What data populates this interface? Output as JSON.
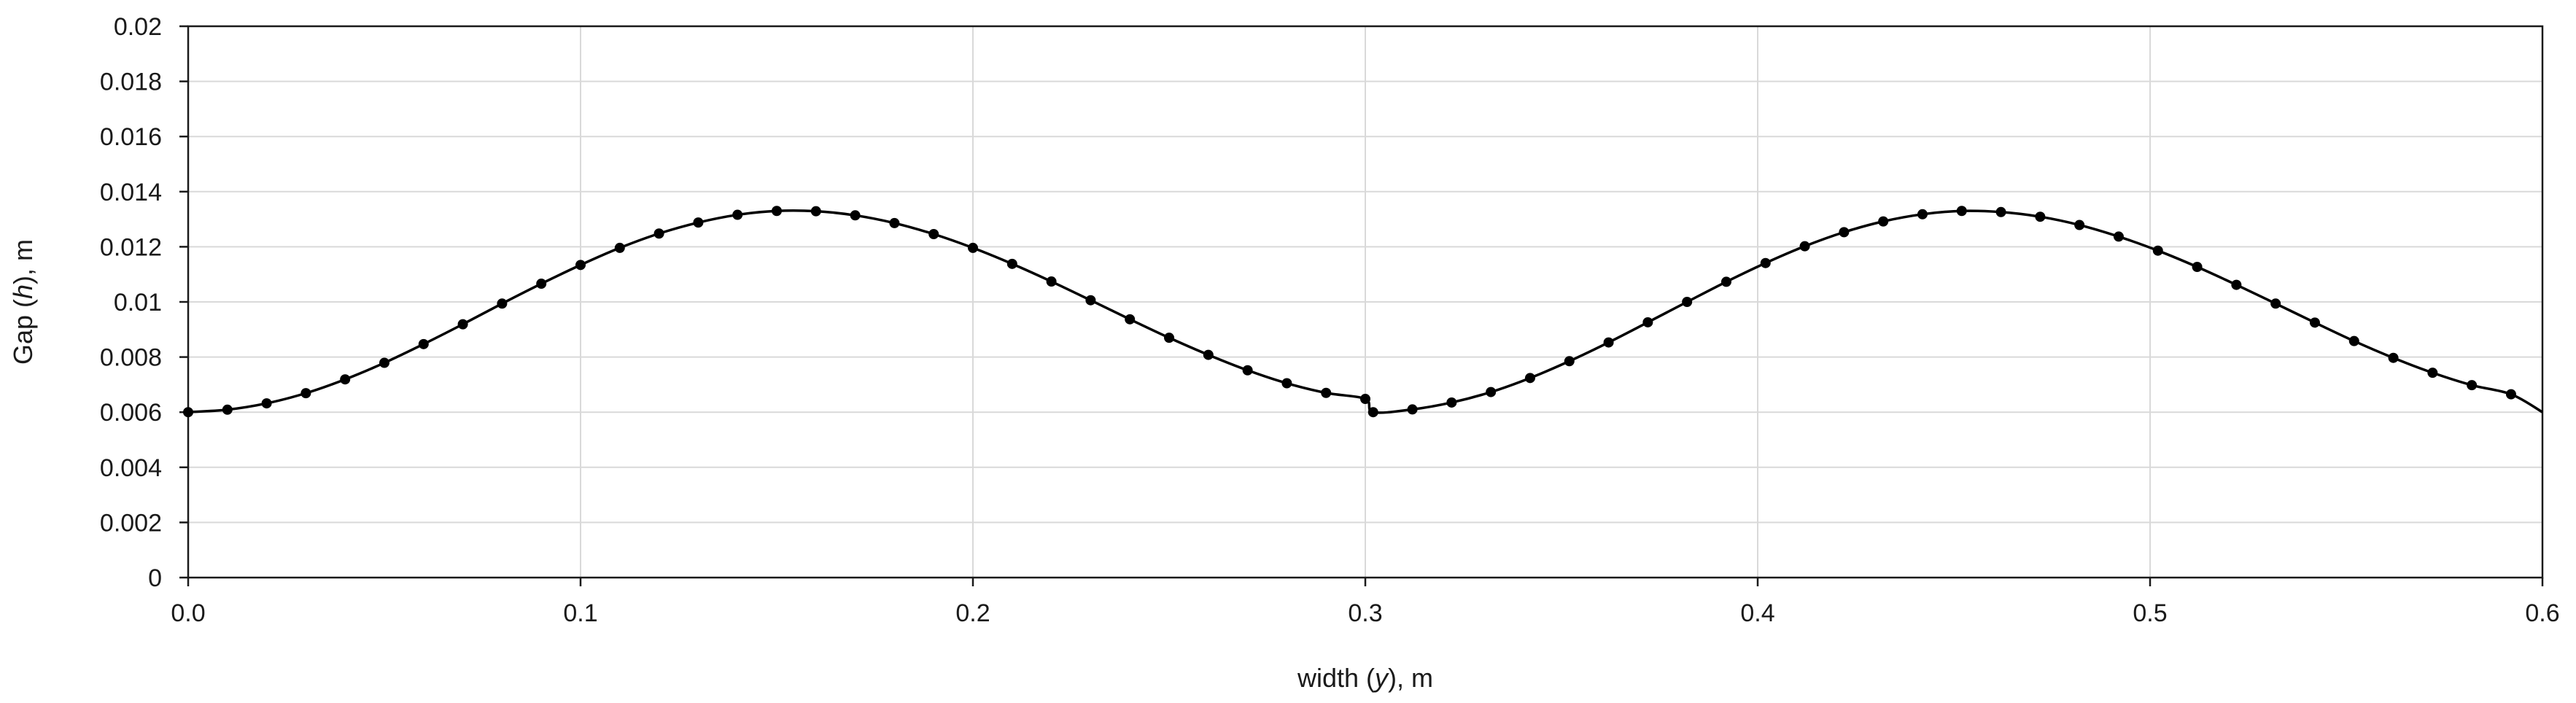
{
  "chart_data": {
    "type": "scatter",
    "xlabel_parts": [
      "width (",
      "y",
      "), m"
    ],
    "ylabel_parts": [
      "Gap (",
      "h",
      "), m"
    ],
    "xlim": [
      0,
      0.6
    ],
    "ylim": [
      0,
      0.02
    ],
    "xticks": [
      0.0,
      0.1,
      0.2,
      0.3,
      0.4,
      0.5,
      0.6
    ],
    "xtick_labels": [
      "0.0",
      "0.1",
      "0.2",
      "0.3",
      "0.4",
      "0.5",
      "0.6"
    ],
    "yticks": [
      0,
      0.002,
      0.004,
      0.006,
      0.008,
      0.01,
      0.012,
      0.014,
      0.016,
      0.018,
      0.02
    ],
    "ytick_labels": [
      "0",
      "0.002",
      "0.004",
      "0.006",
      "0.008",
      "0.01",
      "0.012",
      "0.014",
      "0.016",
      "0.018",
      "0.02"
    ],
    "grid": true,
    "legend": "none",
    "series": [
      {
        "marker": "circle",
        "line": "smooth",
        "color": "#000000",
        "x": [
          0.0,
          0.01,
          0.02,
          0.03,
          0.04,
          0.05,
          0.06,
          0.07,
          0.08,
          0.09,
          0.1,
          0.11,
          0.12,
          0.13,
          0.14,
          0.15,
          0.16,
          0.17,
          0.18,
          0.19,
          0.2,
          0.21,
          0.22,
          0.23,
          0.24,
          0.25,
          0.26,
          0.27,
          0.28,
          0.29,
          0.3,
          0.302,
          0.312,
          0.322,
          0.332,
          0.342,
          0.352,
          0.362,
          0.372,
          0.382,
          0.392,
          0.402,
          0.412,
          0.422,
          0.432,
          0.442,
          0.452,
          0.462,
          0.472,
          0.482,
          0.492,
          0.502,
          0.512,
          0.522,
          0.532,
          0.542,
          0.552,
          0.562,
          0.572,
          0.582,
          0.592,
          0.6
        ],
        "y": [
          0.006,
          0.00609,
          0.00632,
          0.00669,
          0.00719,
          0.00779,
          0.00847,
          0.00919,
          0.00994,
          0.01066,
          0.01134,
          0.01196,
          0.01248,
          0.01288,
          0.01316,
          0.0133,
          0.01329,
          0.01314,
          0.01286,
          0.01246,
          0.01196,
          0.01138,
          0.01074,
          0.01006,
          0.00937,
          0.0087,
          0.00808,
          0.00752,
          0.00705,
          0.0067,
          0.00648,
          0.006,
          0.0061,
          0.00635,
          0.00673,
          0.00724,
          0.00785,
          0.00853,
          0.00926,
          0.01,
          0.01073,
          0.01141,
          0.01202,
          0.01253,
          0.01292,
          0.01318,
          0.0133,
          0.01326,
          0.01309,
          0.01279,
          0.01237,
          0.01186,
          0.01127,
          0.01062,
          0.00994,
          0.00925,
          0.00858,
          0.00797,
          0.00743,
          0.00698,
          0.00665,
          0.006
        ]
      }
    ]
  }
}
